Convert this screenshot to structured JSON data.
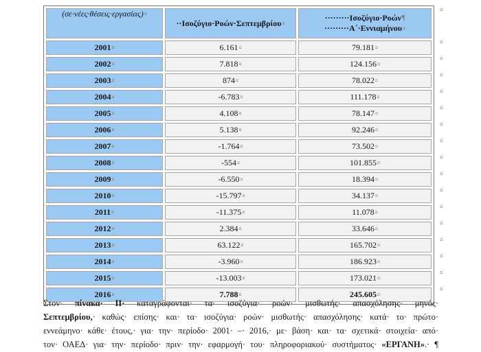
{
  "colors": {
    "cellBlue": "#9CC9F2",
    "cellGray": "#F2F2F2",
    "borderOuter": "#767676",
    "borderCell": "#A6A6A6",
    "mark": "#6E6A55",
    "text": "#15171A"
  },
  "table": {
    "header": {
      "col1": {
        "text": "(σε·νέες·θέσεις·εργασίας)",
        "mark": "¤"
      },
      "col2": {
        "text": "··Ισοζύγιο·Ροών·Σεπτεμβρίου",
        "mark": "¤"
      },
      "col3": {
        "line1": "·········Ισοζύγιο·Ροών",
        "mark1": "¶",
        "line2": "·········Α΄·Εννιαμήνου",
        "mark2": "¤"
      }
    },
    "marks": {
      "cell": "¤",
      "row_end": "¤"
    },
    "rows": [
      {
        "year": "2001",
        "september": "6.161",
        "nine_month": "79.181",
        "bold": false
      },
      {
        "year": "2002",
        "september": "7.818",
        "nine_month": "124.156",
        "bold": false
      },
      {
        "year": "2003",
        "september": "874",
        "nine_month": "78.022",
        "bold": false
      },
      {
        "year": "2004",
        "september": "-6.783",
        "nine_month": "111.178",
        "bold": false
      },
      {
        "year": "2005",
        "september": "4.108",
        "nine_month": "78.147",
        "bold": false
      },
      {
        "year": "2006",
        "september": "5.138",
        "nine_month": "92.246",
        "bold": false
      },
      {
        "year": "2007",
        "september": "-1.764",
        "nine_month": "73.502",
        "bold": false
      },
      {
        "year": "2008",
        "september": "-554",
        "nine_month": "101.855",
        "bold": false
      },
      {
        "year": "2009",
        "september": "-6.550",
        "nine_month": "18.394",
        "bold": false
      },
      {
        "year": "2010",
        "september": "-15.797",
        "nine_month": "34.137",
        "bold": false
      },
      {
        "year": "2011",
        "september": "-11.375",
        "nine_month": "11.078",
        "bold": false
      },
      {
        "year": "2012",
        "september": "2.384",
        "nine_month": "33.646",
        "bold": false
      },
      {
        "year": "2013",
        "september": "63.122",
        "nine_month": "165.702",
        "bold": false
      },
      {
        "year": "2014",
        "september": "-3.960",
        "nine_month": "186.923",
        "bold": false
      },
      {
        "year": "2015",
        "september": "-13.003",
        "nine_month": "173.021",
        "bold": false
      },
      {
        "year": "2016",
        "september": "7.788",
        "nine_month": "245.605",
        "bold": true
      }
    ]
  },
  "paragraph": {
    "lines": [
      [
        {
          "t": "Στον· ",
          "b": false
        },
        {
          "t": "πίνακα· ΙΙ· ",
          "b": true
        },
        {
          "t": "καταγράφονται· τα· ισοζύγια· ροών· μισθωτής· απασχόλησης· μηνός·",
          "b": false
        }
      ],
      [
        {
          "t": "Σεπτεμβρίου,",
          "b": true
        },
        {
          "t": "· καθώς· επίσης· και· τα· ισοζύγια· ροών· μισθωτής· απασχόλησης· κατά· το· πρώτο·",
          "b": false
        }
      ],
      [
        {
          "t": "εννεάμηνο· κάθε· έτους,· για· την· περίοδο· 2001· –· 2016,· με· βάση· και· τα· σχετικά· στοιχεία· από·",
          "b": false
        }
      ],
      [
        {
          "t": "τον· ΟΑΕΔ· για· την· περίοδο· πριν· την· εφαρμογή· του· πληροφοριακού· συστήματος· ",
          "b": false
        },
        {
          "t": "«ΕΡΓΑΝΗ»",
          "b": true
        },
        {
          "t": ".· ¶",
          "b": false
        }
      ]
    ]
  }
}
